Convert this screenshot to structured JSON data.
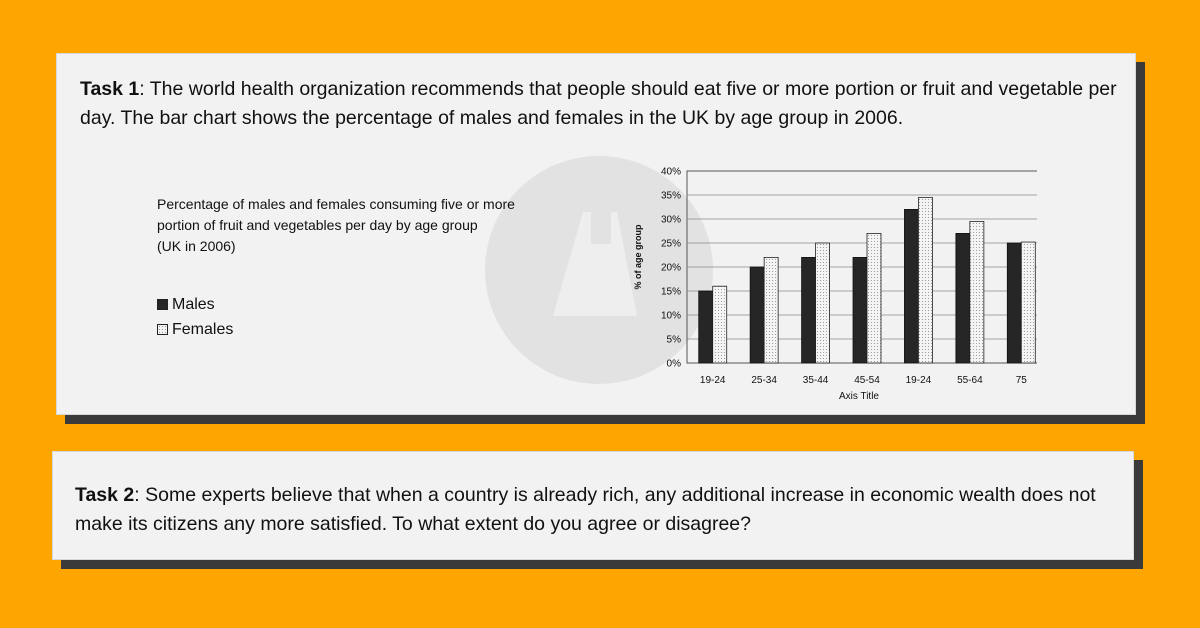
{
  "task1": {
    "label": "Task 1",
    "text": ": The world health organization recommends that people should eat five or more portion or fruit and vegetable per day. The bar chart shows the percentage of males and females in the UK by age group in 2006."
  },
  "task2": {
    "label": "Task 2",
    "text": ": Some experts believe that when a country is already rich, any additional increase in economic wealth does not make its citizens any more satisfied. To what extent do you agree or disagree?"
  },
  "chart_description": {
    "line1": "Percentage of males and females consuming five or more",
    "line2": "portion of fruit and vegetables per day by age group",
    "line3": "(UK in 2006)"
  },
  "colors": {
    "background": "#FFA500",
    "card": "#F2F2F2",
    "male_bar": "#262626",
    "female_bar": "#F4F4F4"
  },
  "watermark_icon": "logo-watermark",
  "chart_data": {
    "type": "bar",
    "categories": [
      "19-24",
      "25-34",
      "35-44",
      "45-54",
      "19-24",
      "55-64",
      "75"
    ],
    "series": [
      {
        "name": "Males",
        "values": [
          15,
          20,
          22,
          22,
          32,
          27,
          25
        ]
      },
      {
        "name": "Females",
        "values": [
          16,
          22,
          25,
          27,
          34.5,
          29.5,
          25.2
        ]
      }
    ],
    "xlabel": "Axis Title",
    "ylabel": "% of age group",
    "ylim": [
      0,
      40
    ],
    "yticks": [
      "0%",
      "5%",
      "10%",
      "15%",
      "20%",
      "25%",
      "30%",
      "35%",
      "40%"
    ],
    "grid": true,
    "legend": "left"
  }
}
